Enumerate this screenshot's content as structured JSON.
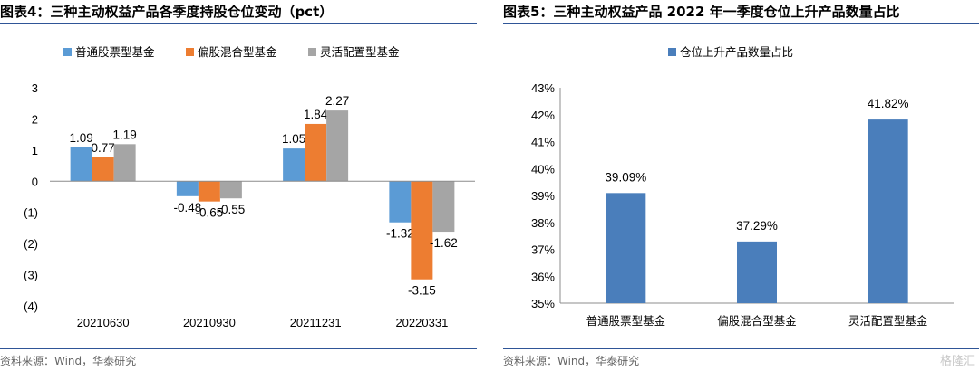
{
  "chart_data": [
    {
      "type": "bar",
      "title": "图表4：三种主动权益产品各季度持股仓位变动（pct）",
      "categories": [
        "20210630",
        "20210930",
        "20211231",
        "20220331"
      ],
      "series": [
        {
          "name": "普通股票型基金",
          "color": "#5b9bd5",
          "values": [
            1.09,
            -0.48,
            1.05,
            -1.32
          ],
          "labels": [
            "1.09",
            "-0.48",
            "1.05",
            "-1.32"
          ]
        },
        {
          "name": "偏股混合型基金",
          "color": "#ed7d31",
          "values": [
            0.77,
            -0.65,
            1.84,
            -3.15
          ],
          "labels": [
            "0.77",
            "-0.65",
            "1.84",
            "-3.15"
          ]
        },
        {
          "name": "灵活配置型基金",
          "color": "#a5a5a5",
          "values": [
            1.19,
            -0.55,
            2.27,
            -1.62
          ],
          "labels": [
            "1.19",
            "-0.55",
            "2.27",
            "-1.62"
          ]
        }
      ],
      "ylim": [
        -4,
        3
      ],
      "yticks": [
        3,
        2,
        1,
        0,
        -1,
        -2,
        -3,
        -4
      ],
      "ytick_labels": [
        "3",
        "2",
        "1",
        "0",
        "(1)",
        "(2)",
        "(3)",
        "(4)"
      ],
      "grid": false,
      "legend_position": "top",
      "source": "资料来源：Wind，华泰研究"
    },
    {
      "type": "bar",
      "title": "图表5：三种主动权益产品 2022 年一季度仓位上升产品数量占比",
      "categories": [
        "普通股票型基金",
        "偏股混合型基金",
        "灵活配置型基金"
      ],
      "series": [
        {
          "name": "仓位上升产品数量占比",
          "color": "#4a7ebb",
          "values": [
            39.09,
            37.29,
            41.82
          ],
          "labels": [
            "39.09%",
            "37.29%",
            "41.82%"
          ]
        }
      ],
      "ylim": [
        35,
        43
      ],
      "yticks": [
        43,
        42,
        41,
        40,
        39,
        38,
        37,
        36,
        35
      ],
      "ytick_labels": [
        "43%",
        "42%",
        "41%",
        "40%",
        "39%",
        "38%",
        "37%",
        "36%",
        "35%"
      ],
      "grid": false,
      "legend_position": "top",
      "source": "资料来源：Wind，华泰研究"
    }
  ],
  "watermark": "格隆汇"
}
